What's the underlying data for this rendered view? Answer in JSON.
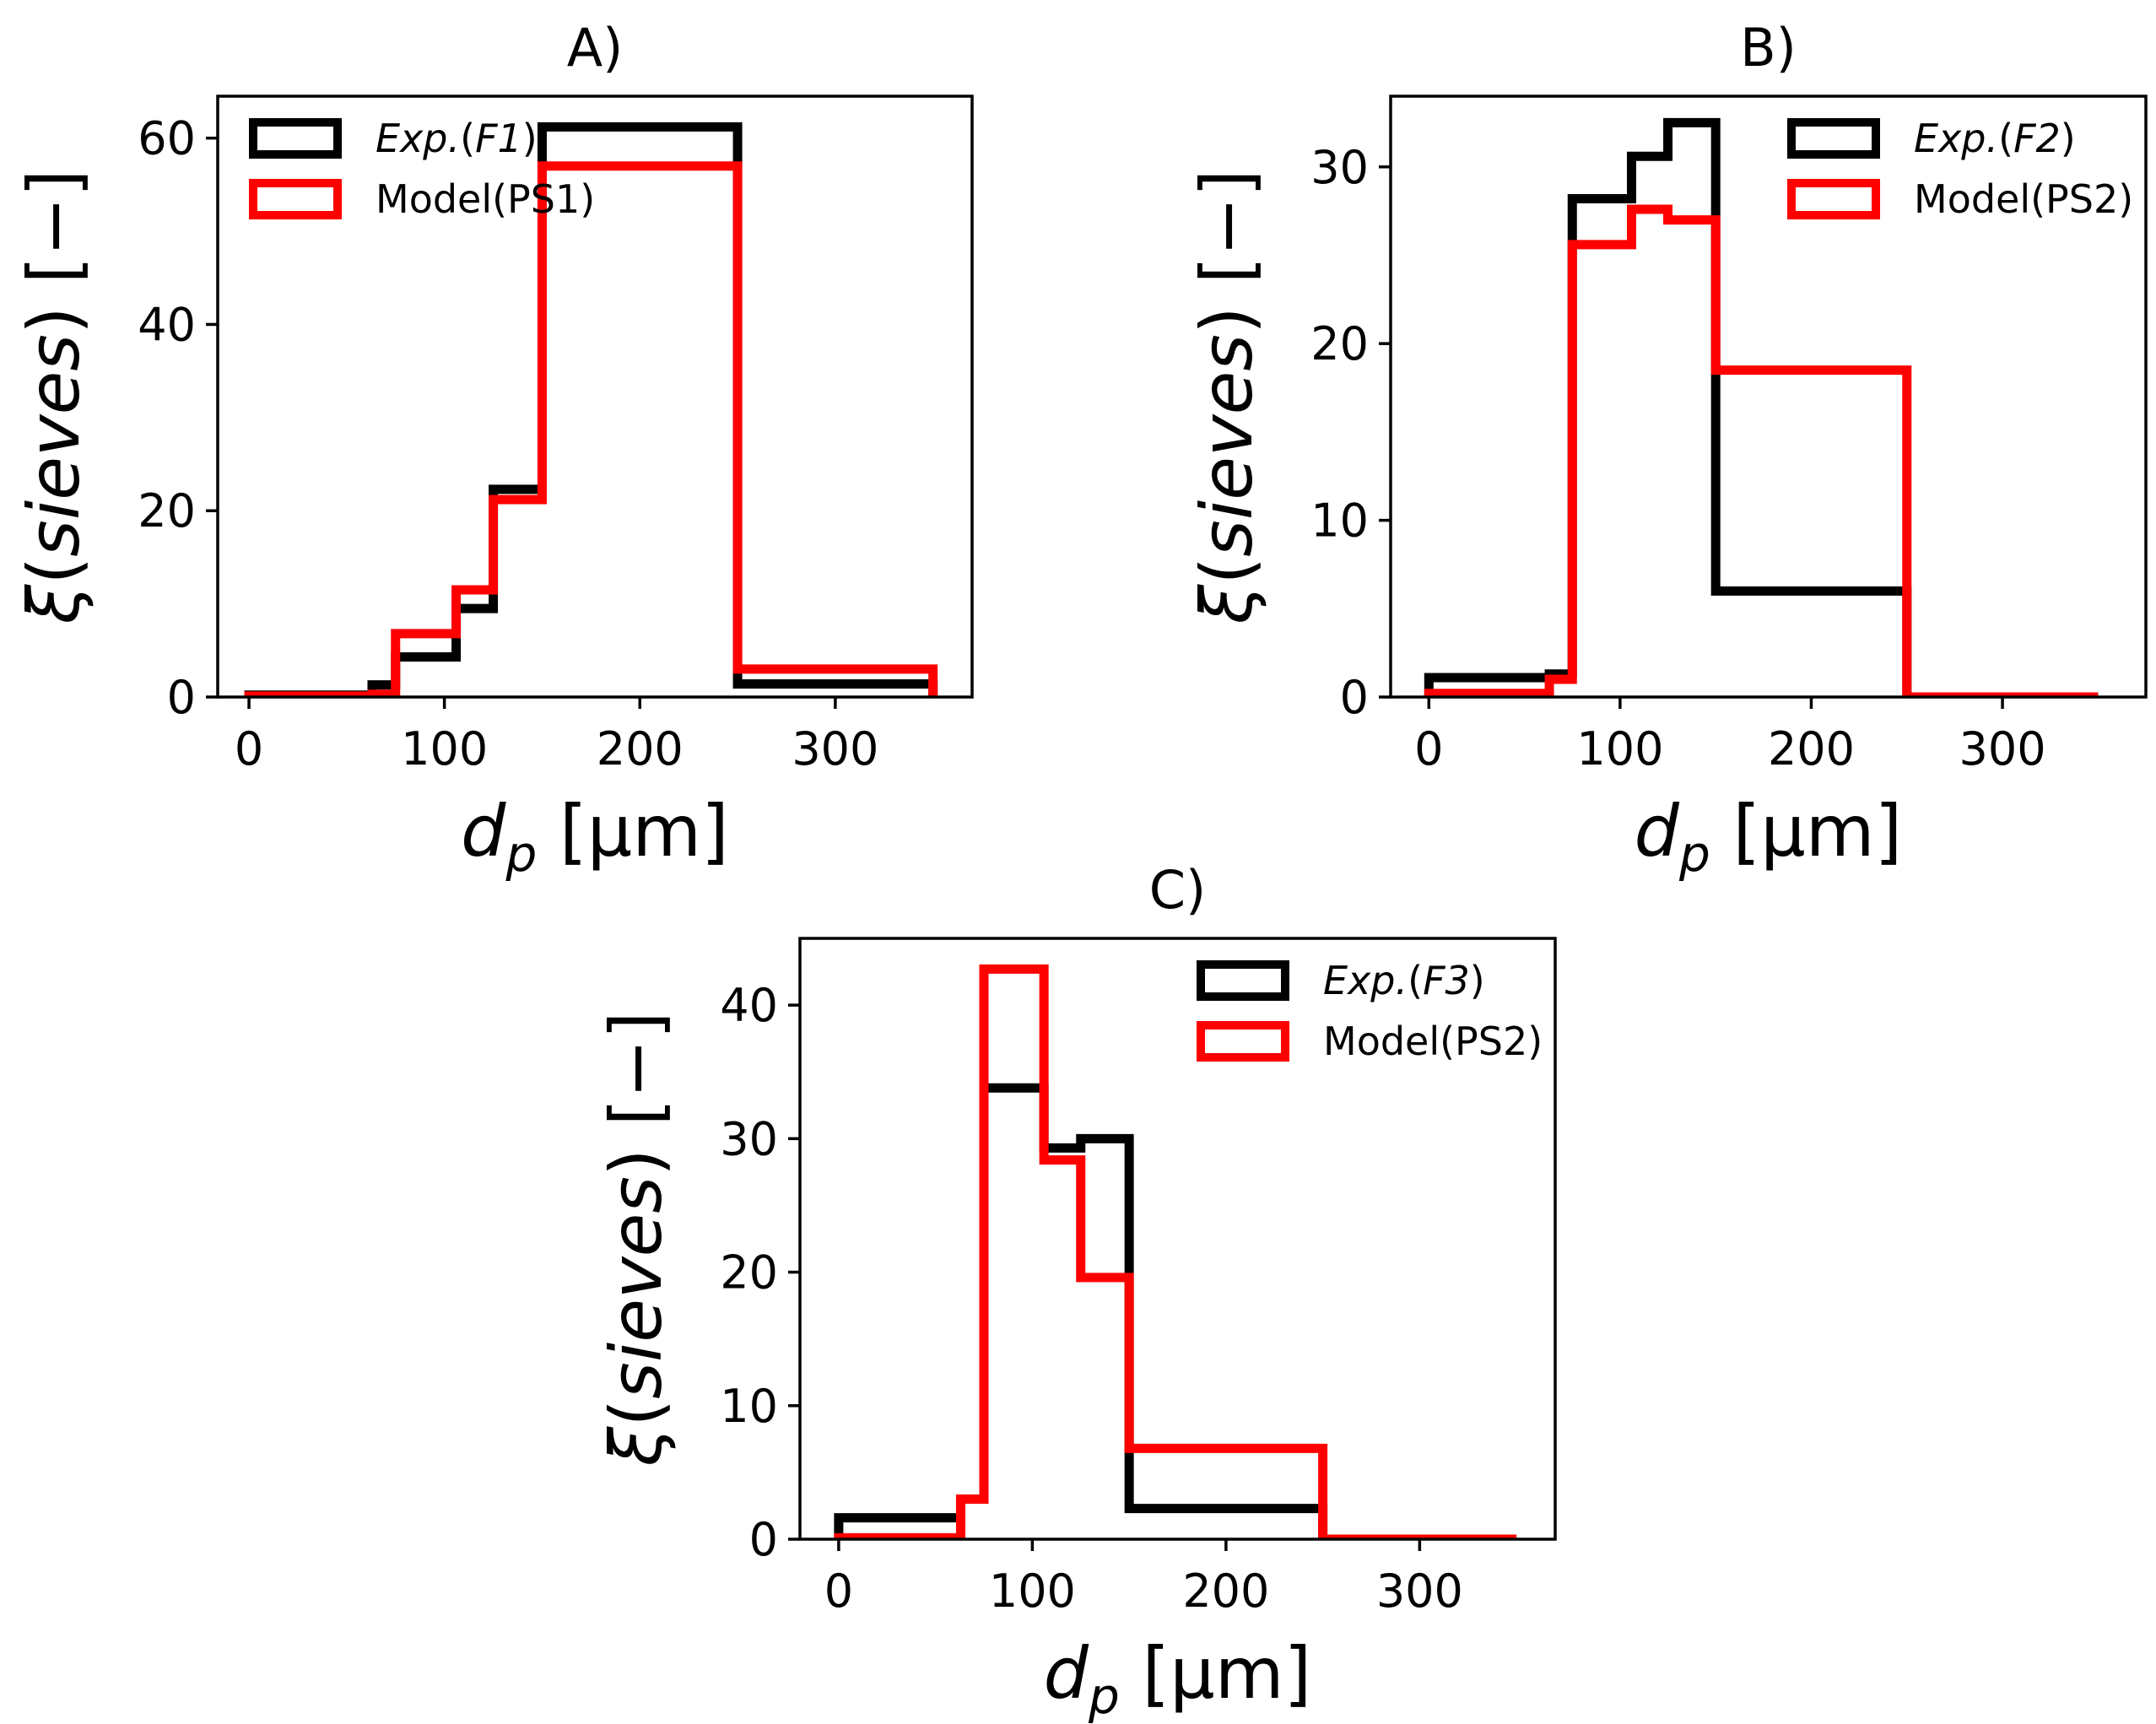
{
  "chart_data": [
    {
      "type": "histogram-step",
      "title": "A)",
      "xlabel": "d_p [μm]",
      "ylabel": "ξ(sieves) [−]",
      "xlim": [
        -16,
        370
      ],
      "ylim": [
        0,
        64.5
      ],
      "xticks": [
        0,
        100,
        200,
        300
      ],
      "yticks": [
        0,
        20,
        40,
        60
      ],
      "bin_edges": [
        0,
        63,
        75,
        106,
        125,
        150,
        250,
        350
      ],
      "series": [
        {
          "name": "Exp.(F1)",
          "legend_italic": "Exp.",
          "legend_paren": "F1",
          "color": "#000000",
          "values": [
            0.2,
            1.3,
            4.3,
            9.5,
            22.3,
            61.2,
            1.4
          ]
        },
        {
          "name": "Model(PS1)",
          "legend_plain": "Model(PS1)",
          "color": "#ff0000",
          "values": [
            0.1,
            0.3,
            6.8,
            11.5,
            21.2,
            57.0,
            3.0
          ]
        }
      ],
      "legend_position": "top-left"
    },
    {
      "type": "histogram-step",
      "title": "B)",
      "xlabel": "d_p [μm]",
      "ylabel": "ξ(sieves) [−]",
      "xlim": [
        -20,
        375
      ],
      "ylim": [
        0,
        34
      ],
      "xticks": [
        0,
        100,
        200,
        300
      ],
      "yticks": [
        0,
        10,
        20,
        30
      ],
      "bin_edges": [
        0,
        63,
        75,
        106,
        125,
        150,
        250,
        350
      ],
      "series": [
        {
          "name": "Exp.(F2)",
          "legend_italic": "Exp.",
          "legend_paren": "F2",
          "color": "#000000",
          "values": [
            1.1,
            1.3,
            28.2,
            30.6,
            32.5,
            6.0,
            0.0
          ]
        },
        {
          "name": "Model(PS2)",
          "legend_plain": "Model(PS2)",
          "color": "#ff0000",
          "values": [
            0.2,
            1.0,
            25.6,
            27.6,
            27.0,
            18.5,
            0.0
          ]
        }
      ],
      "legend_position": "top-right"
    },
    {
      "type": "histogram-step",
      "title": "C)",
      "xlabel": "d_p [μm]",
      "ylabel": "ξ(sieves) [−]",
      "xlim": [
        -20,
        370
      ],
      "ylim": [
        0,
        45
      ],
      "xticks": [
        0,
        100,
        200,
        300
      ],
      "yticks": [
        0,
        10,
        20,
        30,
        40
      ],
      "bin_edges": [
        0,
        63,
        75,
        106,
        125,
        150,
        250,
        350
      ],
      "series": [
        {
          "name": "Exp.(F3)",
          "legend_italic": "Exp.",
          "legend_paren": "F3",
          "color": "#000000",
          "values": [
            1.6,
            3.0,
            33.8,
            29.3,
            30.0,
            2.3,
            0.0
          ]
        },
        {
          "name": "Model(PS2)",
          "legend_plain": "Model(PS2)",
          "color": "#ff0000",
          "values": [
            0.1,
            3.0,
            42.7,
            28.4,
            19.6,
            6.8,
            0.0
          ]
        }
      ],
      "legend_position": "top-right"
    }
  ]
}
